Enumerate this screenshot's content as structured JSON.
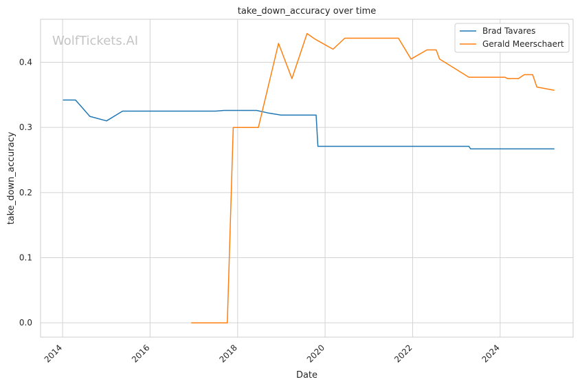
{
  "chart_data": {
    "type": "line",
    "title": "take_down_accuracy over time",
    "xlabel": "Date",
    "ylabel": "take_down_accuracy",
    "watermark": "WolfTickets.AI",
    "x_ticks": [
      "2014",
      "2016",
      "2018",
      "2020",
      "2022",
      "2024"
    ],
    "y_ticks": [
      "0.0",
      "0.1",
      "0.2",
      "0.3",
      "0.4"
    ],
    "xlim": [
      "2013-07-01",
      "2025-09-01"
    ],
    "ylim": [
      -0.022,
      0.466
    ],
    "grid": true,
    "legend_position": "top-right",
    "colors": {
      "Brad Tavares": "#1f77b4",
      "Gerald Meerschaert": "#ff7f0e",
      "grid": "#d3d3d3",
      "axes": "#cccccc"
    },
    "series": [
      {
        "name": "Brad Tavares",
        "x": [
          "2014-01-04",
          "2014-04-19",
          "2014-08-16",
          "2015-01-03",
          "2015-05-16",
          "2017-07-01",
          "2017-09-09",
          "2018-06-09",
          "2018-09-15",
          "2018-12-29",
          "2019-10-18",
          "2019-11-02",
          "2023-04-15",
          "2023-04-29",
          "2025-03-29"
        ],
        "y": [
          0.342,
          0.342,
          0.317,
          0.31,
          0.325,
          0.325,
          0.326,
          0.326,
          0.322,
          0.319,
          0.319,
          0.271,
          0.271,
          0.267,
          0.267
        ]
      },
      {
        "name": "Gerald Meerschaert",
        "x": [
          "2016-12-10",
          "2017-10-07",
          "2017-11-25",
          "2018-06-23",
          "2018-12-08",
          "2019-03-30",
          "2019-08-03",
          "2019-10-05",
          "2019-11-02",
          "2020-03-07",
          "2020-06-13",
          "2021-09-04",
          "2021-12-18",
          "2022-04-30",
          "2022-07-16",
          "2022-08-13",
          "2023-04-15",
          "2024-02-10",
          "2024-03-02",
          "2024-06-01",
          "2024-07-20",
          "2024-09-28",
          "2024-11-02",
          "2025-03-29"
        ],
        "y": [
          0.0,
          0.0,
          0.3,
          0.3,
          0.429,
          0.375,
          0.444,
          0.436,
          0.433,
          0.42,
          0.437,
          0.437,
          0.405,
          0.419,
          0.419,
          0.405,
          0.377,
          0.377,
          0.375,
          0.375,
          0.381,
          0.381,
          0.362,
          0.357
        ]
      }
    ]
  }
}
